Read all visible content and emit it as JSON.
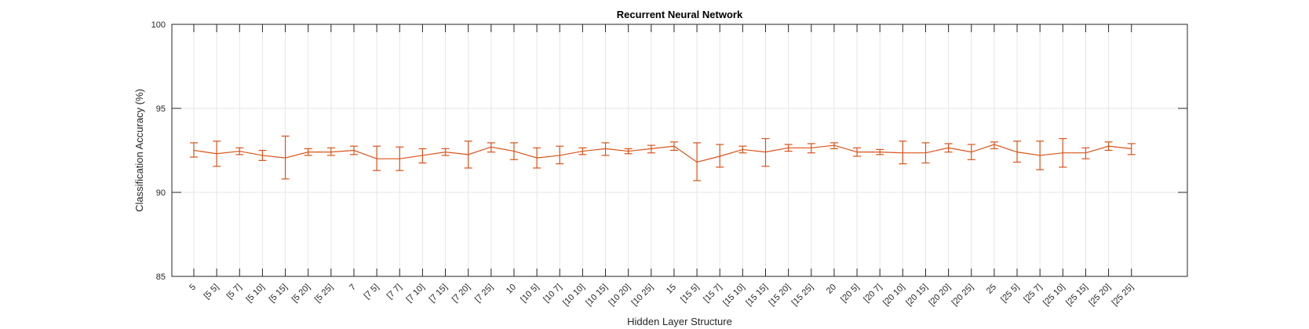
{
  "chart_data": {
    "type": "line",
    "title": "Recurrent Neural Network",
    "xlabel": "Hidden Layer Structure",
    "ylabel": "Classification Accuracy (%)",
    "ylim": [
      85,
      100
    ],
    "yticks": [
      85,
      90,
      95,
      100
    ],
    "grid": true,
    "legend": "none",
    "series_color": "#D95319",
    "categories": [
      "5",
      "[5 5]",
      "[5 7]",
      "[5 10]",
      "[5 15]",
      "[5 20]",
      "[5 25]",
      "7",
      "[7 5]",
      "[7 7]",
      "[7 10]",
      "[7 15]",
      "[7 20]",
      "[7 25]",
      "10",
      "[10 5]",
      "[10 7]",
      "[10 10]",
      "[10 15]",
      "[10 20]",
      "[10 25]",
      "15",
      "[15 5]",
      "[15 7]",
      "[15 10]",
      "[15 15]",
      "[15 20]",
      "[15 25]",
      "20",
      "[20 5]",
      "[20 7]",
      "[20 10]",
      "[20 15]",
      "[20 20]",
      "[20 25]",
      "25",
      "[25 5]",
      "[25 7]",
      "[25 10]",
      "[25 15]",
      "[25 20]",
      "[25 25]"
    ],
    "values": [
      92.5,
      92.3,
      92.45,
      92.2,
      92.05,
      92.4,
      92.4,
      92.5,
      92.0,
      92.0,
      92.2,
      92.4,
      92.25,
      92.7,
      92.45,
      92.05,
      92.2,
      92.45,
      92.6,
      92.45,
      92.6,
      92.75,
      91.8,
      92.15,
      92.55,
      92.4,
      92.65,
      92.65,
      92.8,
      92.4,
      92.4,
      92.35,
      92.35,
      92.65,
      92.4,
      92.85,
      92.4,
      92.2,
      92.35,
      92.35,
      92.75,
      92.6
    ],
    "error_low": [
      92.1,
      91.55,
      92.25,
      91.9,
      90.8,
      92.2,
      92.2,
      92.25,
      91.3,
      91.3,
      91.75,
      92.2,
      91.45,
      92.4,
      91.95,
      91.45,
      91.7,
      92.25,
      92.2,
      92.3,
      92.35,
      92.5,
      90.7,
      91.5,
      92.35,
      91.55,
      92.45,
      92.35,
      92.6,
      92.15,
      92.25,
      91.7,
      91.75,
      92.4,
      91.95,
      92.6,
      91.8,
      91.35,
      91.5,
      92.0,
      92.5,
      92.25
    ],
    "error_high": [
      92.95,
      93.05,
      92.65,
      92.5,
      93.35,
      92.6,
      92.65,
      92.75,
      92.75,
      92.7,
      92.6,
      92.6,
      93.05,
      92.95,
      92.95,
      92.65,
      92.75,
      92.65,
      92.95,
      92.6,
      92.8,
      93.0,
      92.95,
      92.85,
      92.75,
      93.2,
      92.85,
      92.9,
      92.95,
      92.65,
      92.55,
      93.05,
      92.95,
      92.9,
      92.85,
      93.0,
      93.05,
      93.05,
      93.2,
      92.65,
      93.0,
      92.9
    ]
  }
}
